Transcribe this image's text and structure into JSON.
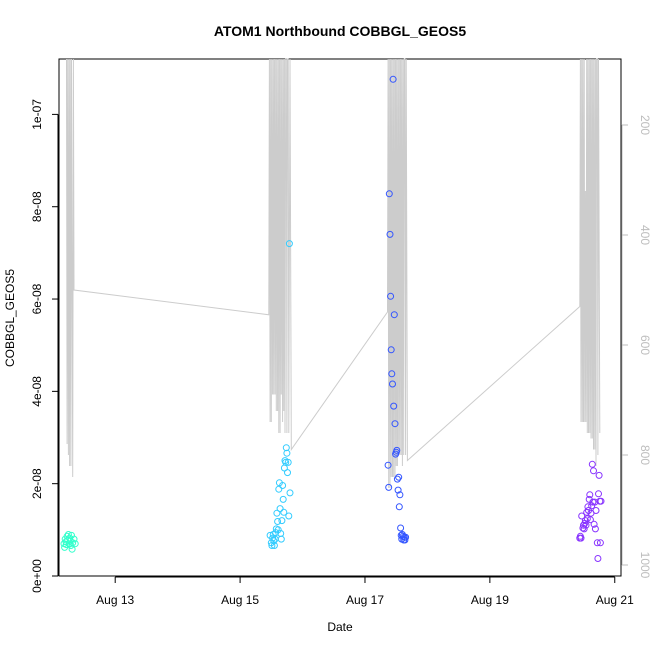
{
  "chart_data": {
    "type": "scatter",
    "title": "ATOM1 Northbound COBBGL_GEOS5",
    "xlabel": "Date",
    "ylabel": "COBBGL_GEOS5",
    "x_unit": "day of August (2016)",
    "xlim": [
      12.1,
      21.1
    ],
    "ylim": [
      0,
      1.12e-07
    ],
    "x_ticks": [
      13,
      15,
      17,
      19,
      21
    ],
    "x_tick_labels": [
      "Aug 13",
      "Aug 15",
      "Aug 17",
      "Aug 19",
      "Aug 21"
    ],
    "y_ticks": [
      0,
      2e-08,
      4e-08,
      6e-08,
      8e-08,
      1e-07
    ],
    "y_tick_labels": [
      "0e+00",
      "2e-08",
      "4e-08",
      "6e-08",
      "8e-08",
      "1e-07"
    ],
    "y2_ticks": [
      200,
      400,
      600,
      800,
      1000
    ],
    "y2_tick_labels": [
      "200",
      "400",
      "600",
      "800",
      "1000"
    ],
    "y2_reversed": true,
    "y2lim": [
      1020,
      80
    ],
    "series": [
      {
        "color": "#33ffcc",
        "points": [
          [
            12.18,
            7e-09
          ],
          [
            12.19,
            6.2e-09
          ],
          [
            12.2,
            8e-09
          ],
          [
            12.21,
            7.4e-09
          ],
          [
            12.22,
            6.8e-09
          ],
          [
            12.23,
            8.6e-09
          ],
          [
            12.24,
            7.8e-09
          ],
          [
            12.25,
            9e-09
          ],
          [
            12.26,
            7e-09
          ],
          [
            12.27,
            8.2e-09
          ],
          [
            12.28,
            7.6e-09
          ],
          [
            12.29,
            6.6e-09
          ],
          [
            12.3,
            8.8e-09
          ],
          [
            12.31,
            5.8e-09
          ],
          [
            12.32,
            7.2e-09
          ],
          [
            12.34,
            8e-09
          ],
          [
            12.36,
            7e-09
          ]
        ]
      },
      {
        "color": "#33ccff",
        "points": [
          [
            15.48,
            8.8e-09
          ],
          [
            15.5,
            7.2e-09
          ],
          [
            15.51,
            6.6e-09
          ],
          [
            15.52,
            8.2e-09
          ],
          [
            15.53,
            9e-09
          ],
          [
            15.54,
            7.6e-09
          ],
          [
            15.55,
            6.6e-09
          ],
          [
            15.56,
            8e-09
          ],
          [
            15.57,
            9.4e-09
          ],
          [
            15.58,
            1.02e-08
          ],
          [
            15.59,
            1.36e-08
          ],
          [
            15.6,
            1.18e-08
          ],
          [
            15.61,
            1e-08
          ],
          [
            15.62,
            1.88e-08
          ],
          [
            15.63,
            2.02e-08
          ],
          [
            15.64,
            1.46e-08
          ],
          [
            15.65,
            9.2e-09
          ],
          [
            15.66,
            8e-09
          ],
          [
            15.67,
            1.2e-08
          ],
          [
            15.68,
            1.96e-08
          ],
          [
            15.69,
            1.66e-08
          ],
          [
            15.7,
            1.38e-08
          ],
          [
            15.71,
            2.34e-08
          ],
          [
            15.72,
            2.5e-08
          ],
          [
            15.73,
            2.46e-08
          ],
          [
            15.74,
            2.78e-08
          ],
          [
            15.75,
            2.66e-08
          ],
          [
            15.76,
            2.24e-08
          ],
          [
            15.77,
            2.46e-08
          ],
          [
            15.78,
            1.3e-08
          ],
          [
            15.79,
            7.2e-08
          ],
          [
            15.8,
            1.8e-08
          ]
        ]
      },
      {
        "color": "#3355ff",
        "points": [
          [
            17.37,
            2.4e-08
          ],
          [
            17.38,
            1.92e-08
          ],
          [
            17.39,
            8.28e-08
          ],
          [
            17.4,
            7.4e-08
          ],
          [
            17.41,
            6.06e-08
          ],
          [
            17.42,
            4.9e-08
          ],
          [
            17.43,
            4.38e-08
          ],
          [
            17.44,
            4.16e-08
          ],
          [
            17.45,
            1.076e-07
          ],
          [
            17.46,
            3.68e-08
          ],
          [
            17.47,
            5.66e-08
          ],
          [
            17.48,
            3.3e-08
          ],
          [
            17.49,
            2.64e-08
          ],
          [
            17.5,
            2.68e-08
          ],
          [
            17.51,
            2.72e-08
          ],
          [
            17.52,
            2.1e-08
          ],
          [
            17.53,
            1.86e-08
          ],
          [
            17.54,
            2.14e-08
          ],
          [
            17.55,
            1.5e-08
          ],
          [
            17.56,
            1.76e-08
          ],
          [
            17.57,
            1.04e-08
          ],
          [
            17.58,
            8.8e-09
          ],
          [
            17.59,
            8e-09
          ],
          [
            17.6,
            9e-09
          ],
          [
            17.61,
            8.6e-09
          ],
          [
            17.62,
            7.8e-09
          ],
          [
            17.63,
            8.4e-09
          ],
          [
            17.64,
            7.8e-09
          ],
          [
            17.65,
            8.4e-09
          ]
        ]
      },
      {
        "color": "#8833ff",
        "points": [
          [
            20.44,
            8.2e-09
          ],
          [
            20.45,
            8.6e-09
          ],
          [
            20.46,
            8.2e-09
          ],
          [
            20.47,
            1.3e-08
          ],
          [
            20.49,
            1.04e-08
          ],
          [
            20.5,
            1.1e-08
          ],
          [
            20.51,
            1.02e-08
          ],
          [
            20.52,
            1.14e-08
          ],
          [
            20.53,
            1.2e-08
          ],
          [
            20.54,
            1.1e-08
          ],
          [
            20.55,
            1.38e-08
          ],
          [
            20.56,
            1.24e-08
          ],
          [
            20.57,
            1.5e-08
          ],
          [
            20.58,
            1.42e-08
          ],
          [
            20.59,
            1.66e-08
          ],
          [
            20.6,
            1.76e-08
          ],
          [
            20.61,
            1.22e-08
          ],
          [
            20.62,
            1.36e-08
          ],
          [
            20.63,
            1.52e-08
          ],
          [
            20.64,
            2.42e-08
          ],
          [
            20.65,
            1.6e-08
          ],
          [
            20.66,
            2.28e-08
          ],
          [
            20.67,
            1.12e-08
          ],
          [
            20.68,
            1.6e-08
          ],
          [
            20.69,
            1.02e-08
          ],
          [
            20.7,
            1.42e-08
          ],
          [
            20.72,
            7.2e-09
          ],
          [
            20.73,
            3.8e-09
          ],
          [
            20.74,
            1.78e-08
          ],
          [
            20.75,
            2.18e-08
          ],
          [
            20.76,
            1.62e-08
          ],
          [
            20.77,
            7.2e-09
          ],
          [
            20.78,
            1.62e-08
          ]
        ]
      }
    ],
    "pressure_line": {
      "color": "#cccccc",
      "axis": "right",
      "points": [
        [
          12.22,
          80
        ],
        [
          12.23,
          780
        ],
        [
          12.24,
          80
        ],
        [
          12.25,
          800
        ],
        [
          12.26,
          80
        ],
        [
          12.27,
          820
        ],
        [
          12.28,
          80
        ],
        [
          12.29,
          820
        ],
        [
          12.3,
          80
        ],
        [
          12.32,
          840
        ],
        [
          12.33,
          80
        ],
        [
          12.34,
          500
        ],
        [
          15.46,
          545
        ],
        [
          15.47,
          80
        ],
        [
          15.48,
          740
        ],
        [
          15.49,
          80
        ],
        [
          15.5,
          740
        ],
        [
          15.51,
          80
        ],
        [
          15.52,
          690
        ],
        [
          15.53,
          80
        ],
        [
          15.54,
          690
        ],
        [
          15.55,
          80
        ],
        [
          15.56,
          690
        ],
        [
          15.57,
          80
        ],
        [
          15.58,
          720
        ],
        [
          15.59,
          80
        ],
        [
          15.6,
          720
        ],
        [
          15.61,
          80
        ],
        [
          15.62,
          760
        ],
        [
          15.63,
          80
        ],
        [
          15.64,
          760
        ],
        [
          15.65,
          80
        ],
        [
          15.66,
          690
        ],
        [
          15.67,
          80
        ],
        [
          15.68,
          740
        ],
        [
          15.69,
          80
        ],
        [
          15.7,
          720
        ],
        [
          15.71,
          80
        ],
        [
          15.72,
          760
        ],
        [
          15.73,
          80
        ],
        [
          15.74,
          80
        ],
        [
          15.75,
          760
        ],
        [
          15.76,
          80
        ],
        [
          15.77,
          80
        ],
        [
          15.78,
          760
        ],
        [
          15.8,
          80
        ],
        [
          15.82,
          790
        ],
        [
          17.36,
          540
        ],
        [
          17.37,
          80
        ],
        [
          17.38,
          860
        ],
        [
          17.39,
          80
        ],
        [
          17.4,
          860
        ],
        [
          17.41,
          80
        ],
        [
          17.42,
          840
        ],
        [
          17.43,
          80
        ],
        [
          17.44,
          840
        ],
        [
          17.45,
          80
        ],
        [
          17.46,
          840
        ],
        [
          17.47,
          80
        ],
        [
          17.48,
          840
        ],
        [
          17.49,
          80
        ],
        [
          17.5,
          820
        ],
        [
          17.51,
          80
        ],
        [
          17.52,
          820
        ],
        [
          17.53,
          80
        ],
        [
          17.54,
          800
        ],
        [
          17.55,
          80
        ],
        [
          17.56,
          800
        ],
        [
          17.57,
          80
        ],
        [
          17.58,
          800
        ],
        [
          17.59,
          80
        ],
        [
          17.6,
          820
        ],
        [
          17.61,
          80
        ],
        [
          17.62,
          800
        ],
        [
          17.63,
          80
        ],
        [
          17.64,
          80
        ],
        [
          17.65,
          800
        ],
        [
          17.66,
          80
        ],
        [
          17.68,
          810
        ],
        [
          20.44,
          530
        ],
        [
          20.45,
          80
        ],
        [
          20.46,
          740
        ],
        [
          20.47,
          80
        ],
        [
          20.48,
          740
        ],
        [
          20.49,
          80
        ],
        [
          20.5,
          740
        ],
        [
          20.51,
          80
        ],
        [
          20.52,
          740
        ],
        [
          20.53,
          320
        ],
        [
          20.54,
          740
        ],
        [
          20.55,
          80
        ],
        [
          20.56,
          760
        ],
        [
          20.57,
          80
        ],
        [
          20.58,
          760
        ],
        [
          20.59,
          80
        ],
        [
          20.6,
          760
        ],
        [
          20.61,
          80
        ],
        [
          20.62,
          770
        ],
        [
          20.63,
          80
        ],
        [
          20.64,
          770
        ],
        [
          20.65,
          80
        ],
        [
          20.66,
          790
        ],
        [
          20.67,
          80
        ],
        [
          20.68,
          790
        ],
        [
          20.69,
          80
        ],
        [
          20.7,
          820
        ],
        [
          20.71,
          80
        ],
        [
          20.72,
          80
        ],
        [
          20.73,
          800
        ],
        [
          20.74,
          80
        ],
        [
          20.76,
          760
        ]
      ]
    }
  }
}
